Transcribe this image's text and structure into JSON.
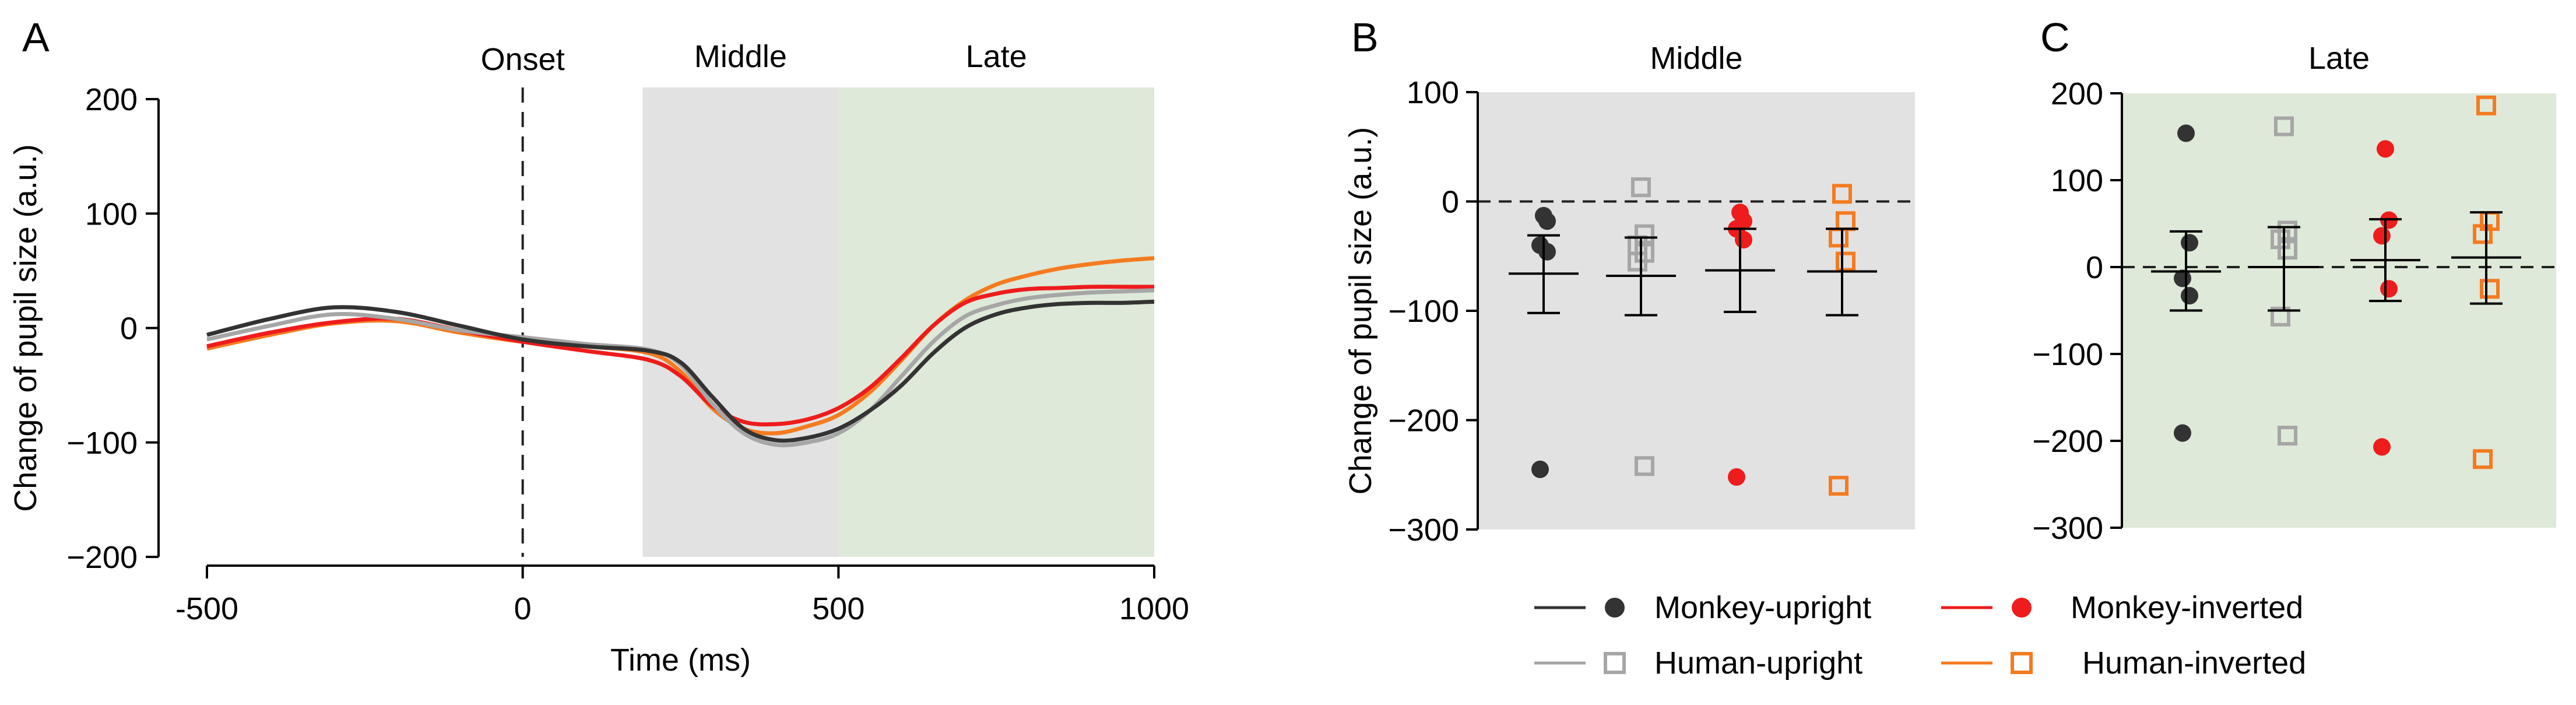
{
  "colors": {
    "monkey_upright": "#333333",
    "human_upright": "#a6a6a6",
    "monkey_inverted": "#ee1c1c",
    "human_inverted": "#f47b20",
    "middle_shade": "#e2e2e2",
    "late_shade": "#dfe9d9"
  },
  "legend": [
    {
      "key": "monkey_upright",
      "label": "Monkey-upright",
      "marker": "circle",
      "icon": "filled-circle-icon"
    },
    {
      "key": "human_upright",
      "label": "Human-upright",
      "marker": "square",
      "icon": "open-square-icon"
    },
    {
      "key": "monkey_inverted",
      "label": "Monkey-inverted",
      "marker": "circle",
      "icon": "filled-circle-icon"
    },
    {
      "key": "human_inverted",
      "label": "Human-inverted",
      "marker": "square",
      "icon": "open-square-icon"
    }
  ],
  "chart_data": [
    {
      "panel": "A",
      "type": "line",
      "xlabel": "Time (ms)",
      "ylabel": "Change of pupil size (a.u.)",
      "xlim": [
        -500,
        1000
      ],
      "ylim": [
        -200,
        200
      ],
      "xticks": [
        -500,
        0,
        500,
        1000
      ],
      "xtick_labels": [
        "-500",
        "0",
        "500",
        "1000"
      ],
      "yticks": [
        -200,
        -100,
        0,
        100,
        200
      ],
      "ytick_labels": [
        "−200",
        "−100",
        "0",
        "100",
        "200"
      ],
      "onset": {
        "x": 0,
        "label": "Onset"
      },
      "windows": [
        {
          "label": "Middle",
          "x0": 190,
          "x1": 500,
          "color_key": "middle_shade"
        },
        {
          "label": "Late",
          "x0": 500,
          "x1": 1000,
          "color_key": "late_shade"
        }
      ],
      "x": [
        -500,
        -400,
        -300,
        -200,
        -100,
        0,
        100,
        200,
        250,
        300,
        350,
        400,
        450,
        500,
        550,
        600,
        650,
        700,
        750,
        800,
        850,
        900,
        950,
        1000
      ],
      "series": [
        {
          "name": "Monkey-upright",
          "key": "monkey_upright",
          "values": [
            -6,
            8,
            18,
            14,
            2,
            -10,
            -16,
            -20,
            -30,
            -60,
            -88,
            -98,
            -96,
            -88,
            -72,
            -50,
            -22,
            0,
            12,
            18,
            21,
            22,
            22,
            23
          ]
        },
        {
          "name": "Human-upright",
          "key": "human_upright",
          "values": [
            -10,
            2,
            12,
            8,
            -2,
            -8,
            -14,
            -19,
            -32,
            -66,
            -92,
            -102,
            -100,
            -92,
            -72,
            -42,
            -12,
            10,
            20,
            26,
            29,
            31,
            32,
            33
          ]
        },
        {
          "name": "Monkey-inverted",
          "key": "monkey_inverted",
          "values": [
            -16,
            -4,
            5,
            8,
            -2,
            -12,
            -20,
            -28,
            -42,
            -68,
            -82,
            -84,
            -80,
            -70,
            -52,
            -26,
            2,
            22,
            30,
            34,
            35,
            36,
            36,
            36
          ]
        },
        {
          "name": "Human-inverted",
          "key": "human_inverted",
          "values": [
            -18,
            -6,
            4,
            6,
            -4,
            -12,
            -16,
            -22,
            -38,
            -70,
            -88,
            -92,
            -86,
            -76,
            -56,
            -28,
            2,
            24,
            38,
            46,
            52,
            56,
            59,
            61
          ]
        }
      ]
    },
    {
      "panel": "B",
      "type": "scatter",
      "title": "Middle",
      "ylabel": "Change of pupil size (a.u.)",
      "ylim": [
        -300,
        100
      ],
      "yticks": [
        -300,
        -200,
        -100,
        0,
        100
      ],
      "ytick_labels": [
        "−300",
        "−200",
        "−100",
        "0",
        "100"
      ],
      "bg_key": "middle_shade",
      "groups": [
        {
          "key": "monkey_upright",
          "marker": "circle",
          "points": [
            -13,
            -18,
            -40,
            -46,
            -245
          ],
          "mean": -66,
          "err_low": -102,
          "err_high": -31
        },
        {
          "key": "human_upright",
          "marker": "square",
          "points": [
            13,
            -30,
            -40,
            -47,
            -55,
            -242
          ],
          "mean": -68,
          "err_low": -104,
          "err_high": -33
        },
        {
          "key": "monkey_inverted",
          "marker": "circle",
          "points": [
            -10,
            -18,
            -25,
            -35,
            -252
          ],
          "mean": -63,
          "err_low": -101,
          "err_high": -25
        },
        {
          "key": "human_inverted",
          "marker": "square",
          "points": [
            7,
            -18,
            -33,
            -55,
            -260
          ],
          "mean": -64,
          "err_low": -104,
          "err_high": -25
        }
      ]
    },
    {
      "panel": "C",
      "type": "scatter",
      "title": "Late",
      "ylim": [
        -300,
        200
      ],
      "yticks": [
        -300,
        -200,
        -100,
        0,
        100,
        200
      ],
      "ytick_labels": [
        "−300",
        "−200",
        "−100",
        "0",
        "100",
        "200"
      ],
      "bg_key": "late_shade",
      "groups": [
        {
          "key": "monkey_upright",
          "marker": "circle",
          "points": [
            154,
            28,
            -13,
            -33,
            -191
          ],
          "mean": -5,
          "err_low": -50,
          "err_high": 41
        },
        {
          "key": "human_upright",
          "marker": "square",
          "points": [
            162,
            42,
            32,
            20,
            -57,
            -194
          ],
          "mean": 0,
          "err_low": -50,
          "err_high": 46
        },
        {
          "key": "monkey_inverted",
          "marker": "circle",
          "points": [
            136,
            54,
            36,
            -25,
            -207
          ],
          "mean": 8,
          "err_low": -39,
          "err_high": 55
        },
        {
          "key": "human_inverted",
          "marker": "square",
          "points": [
            186,
            53,
            38,
            -25,
            -221
          ],
          "mean": 11,
          "err_low": -42,
          "err_high": 63
        }
      ]
    }
  ],
  "panel_labels": {
    "a": "A",
    "b": "B",
    "c": "C"
  }
}
